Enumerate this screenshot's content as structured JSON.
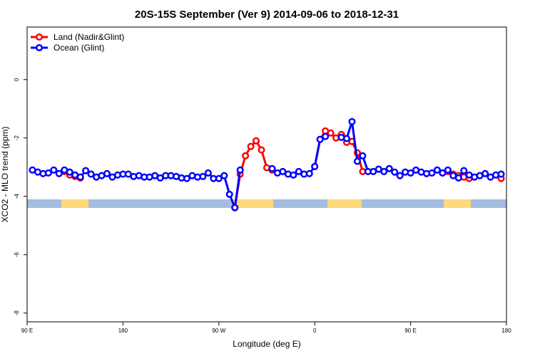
{
  "chart_data": {
    "type": "line",
    "title": "20S-15S September (Ver 9)   2014-09-06 to 2018-12-31",
    "x_label": "Longitude (deg E)",
    "y_label": "XCO2 - MLO trend (ppm)",
    "x": [
      95,
      100,
      105,
      110,
      115,
      120,
      125,
      130,
      135,
      140,
      145,
      150,
      155,
      160,
      165,
      170,
      175,
      180,
      185,
      190,
      195,
      200,
      205,
      210,
      215,
      220,
      225,
      230,
      235,
      240,
      245,
      250,
      255,
      260,
      265,
      270,
      275,
      280,
      285,
      290,
      295,
      300,
      305,
      310,
      315,
      320,
      325,
      330,
      335,
      340,
      345,
      350,
      355,
      360,
      365,
      370,
      375,
      380,
      385,
      390,
      395,
      400,
      405,
      410,
      415,
      420,
      425,
      430,
      435,
      440,
      445,
      450,
      455,
      460,
      465,
      470,
      475,
      480,
      485,
      490,
      495,
      500,
      505,
      510,
      515,
      520,
      525,
      530,
      535
    ],
    "series": [
      {
        "name": "Land (Nadir&Glint)",
        "color": "#ff0000",
        "values": [
          null,
          null,
          null,
          null,
          null,
          null,
          -3.15,
          -3.27,
          -3.32,
          -3.37,
          null,
          null,
          null,
          null,
          null,
          null,
          null,
          null,
          null,
          null,
          null,
          null,
          null,
          null,
          null,
          null,
          null,
          null,
          null,
          null,
          null,
          null,
          null,
          null,
          null,
          null,
          null,
          null,
          -4.39,
          -3.24,
          -2.61,
          -2.29,
          -2.1,
          -2.41,
          -3.02,
          -3.1,
          null,
          null,
          null,
          null,
          null,
          null,
          null,
          -2.98,
          -2.05,
          -1.76,
          -1.83,
          -2.0,
          -1.88,
          -2.15,
          -2.12,
          -2.51,
          -3.15,
          null,
          null,
          null,
          null,
          null,
          null,
          null,
          null,
          null,
          null,
          null,
          null,
          null,
          null,
          -3.2,
          -3.15,
          -3.24,
          -3.29,
          -3.34,
          -3.39,
          null,
          null,
          null,
          null,
          null,
          -3.39
        ]
      },
      {
        "name": "Ocean (Glint)",
        "color": "#0000ff",
        "values": [
          -3.1,
          -3.17,
          -3.22,
          -3.2,
          -3.1,
          -3.22,
          -3.1,
          -3.17,
          -3.27,
          -3.34,
          -3.12,
          -3.24,
          -3.34,
          -3.29,
          -3.22,
          -3.34,
          -3.27,
          -3.24,
          -3.24,
          -3.32,
          -3.29,
          -3.34,
          -3.34,
          -3.29,
          -3.37,
          -3.29,
          -3.29,
          -3.32,
          -3.37,
          -3.39,
          -3.29,
          -3.34,
          -3.32,
          -3.2,
          -3.39,
          -3.39,
          -3.29,
          -3.93,
          -4.39,
          -3.1,
          null,
          null,
          null,
          null,
          null,
          -3.05,
          -3.2,
          -3.15,
          -3.24,
          -3.27,
          -3.15,
          -3.24,
          -3.22,
          -2.98,
          -2.05,
          -1.95,
          null,
          null,
          -1.98,
          -2.02,
          -1.44,
          -2.8,
          -2.61,
          -3.15,
          -3.15,
          -3.07,
          -3.15,
          -3.05,
          -3.17,
          -3.29,
          -3.17,
          -3.2,
          -3.1,
          -3.17,
          -3.22,
          -3.2,
          -3.1,
          -3.2,
          -3.1,
          -3.29,
          -3.37,
          -3.12,
          -3.27,
          -3.34,
          -3.29,
          -3.22,
          -3.34,
          -3.27,
          -3.24
        ]
      }
    ],
    "xlim": [
      90,
      540
    ],
    "xticks": [
      {
        "value": 90,
        "label": "90 E"
      },
      {
        "value": 180,
        "label": "180"
      },
      {
        "value": 270,
        "label": "90 W"
      },
      {
        "value": 360,
        "label": "0"
      },
      {
        "value": 450,
        "label": "90 E"
      },
      {
        "value": 540,
        "label": "180"
      }
    ],
    "ylim": [
      -8.3,
      1.8
    ],
    "yticks": [
      0,
      -2,
      -4,
      -6,
      -8
    ],
    "legend": "topleft"
  }
}
